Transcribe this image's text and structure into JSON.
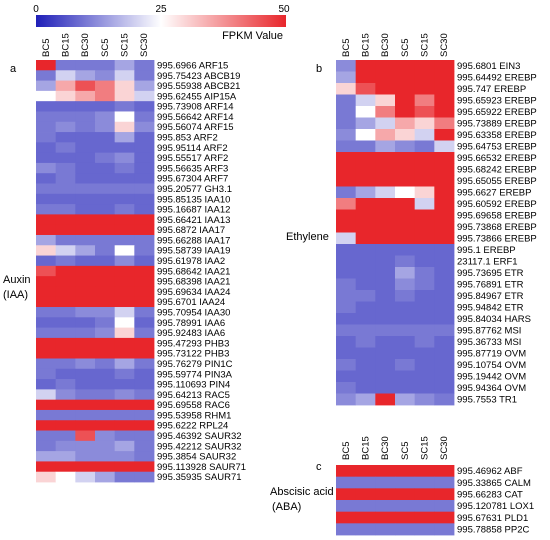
{
  "chart_data": {
    "type": "heatmap",
    "colorbar": {
      "label": "FPKM Value",
      "ticks": [
        0,
        25,
        50
      ],
      "range": [
        0,
        50
      ],
      "colors": {
        "low": "#1f1fb8",
        "mid": "#ffffff",
        "high": "#e8262b"
      }
    },
    "columns": [
      "BC5",
      "BC15",
      "BC30",
      "SC5",
      "SC15",
      "SC30"
    ],
    "panels": [
      {
        "letter": "a",
        "group_label": [
          "Auxin",
          "(IAA)"
        ],
        "rows": [
          {
            "label": "995.6966 ARF15",
            "values": [
              50,
              10,
              10,
              10,
              15,
              10
            ]
          },
          {
            "label": "995.75423 ABCB19",
            "values": [
              10,
              20,
              15,
              12,
              20,
              10
            ]
          },
          {
            "label": "995.55938 ABCB21",
            "values": [
              15,
              35,
              45,
              40,
              30,
              15
            ]
          },
          {
            "label": "995.62455 AIP15A",
            "values": [
              25,
              30,
              35,
              40,
              30,
              20
            ]
          },
          {
            "label": "995.73908 ARF14",
            "values": [
              8,
              8,
              8,
              8,
              10,
              8
            ]
          },
          {
            "label": "995.56642 ARF14",
            "values": [
              10,
              10,
              10,
              12,
              25,
              10
            ]
          },
          {
            "label": "995.56074 ARF15",
            "values": [
              10,
              12,
              10,
              12,
              30,
              12
            ]
          },
          {
            "label": "995.853 ARF2",
            "values": [
              10,
              8,
              8,
              8,
              15,
              8
            ]
          },
          {
            "label": "995.95114 ARF2",
            "values": [
              8,
              10,
              8,
              8,
              8,
              8
            ]
          },
          {
            "label": "995.55517 ARF2",
            "values": [
              8,
              8,
              8,
              10,
              12,
              8
            ]
          },
          {
            "label": "995.56635 ARF3",
            "values": [
              12,
              10,
              8,
              8,
              10,
              8
            ]
          },
          {
            "label": "995.67304 ARF7",
            "values": [
              8,
              10,
              8,
              8,
              8,
              8
            ]
          },
          {
            "label": "995.20577 GH3.1",
            "values": [
              10,
              10,
              10,
              10,
              10,
              10
            ]
          },
          {
            "label": "995.85135 IAA10",
            "values": [
              8,
              8,
              8,
              8,
              8,
              8
            ]
          },
          {
            "label": "995.16687 IAA12",
            "values": [
              10,
              10,
              8,
              8,
              10,
              8
            ]
          },
          {
            "label": "995.66421 IAA13",
            "values": [
              50,
              50,
              50,
              50,
              50,
              50
            ]
          },
          {
            "label": "995.6872 IAA17",
            "values": [
              50,
              50,
              50,
              50,
              50,
              50
            ]
          },
          {
            "label": "995.66288 IAA17",
            "values": [
              15,
              10,
              10,
              10,
              10,
              10
            ]
          },
          {
            "label": "995.58739 IAA19",
            "values": [
              30,
              20,
              15,
              10,
              25,
              10
            ]
          },
          {
            "label": "995.61978 IAA2",
            "values": [
              8,
              10,
              8,
              8,
              12,
              8
            ]
          },
          {
            "label": "995.68642 IAA21",
            "values": [
              45,
              50,
              50,
              50,
              50,
              50
            ]
          },
          {
            "label": "995.68398 IAA21",
            "values": [
              50,
              50,
              50,
              50,
              50,
              50
            ]
          },
          {
            "label": "995.69634 IAA24",
            "values": [
              50,
              50,
              50,
              50,
              50,
              50
            ]
          },
          {
            "label": "995.6701 IAA24",
            "values": [
              50,
              50,
              50,
              50,
              50,
              50
            ]
          },
          {
            "label": "995.70954 IAA30",
            "values": [
              10,
              10,
              12,
              12,
              20,
              10
            ]
          },
          {
            "label": "995.78991 IAA6",
            "values": [
              8,
              8,
              8,
              10,
              25,
              8
            ]
          },
          {
            "label": "995.92483 IAA6",
            "values": [
              10,
              10,
              10,
              12,
              30,
              10
            ]
          },
          {
            "label": "995.47293 PHB3",
            "values": [
              50,
              50,
              50,
              50,
              50,
              50
            ]
          },
          {
            "label": "995.73122 PHB3",
            "values": [
              50,
              50,
              50,
              50,
              50,
              50
            ]
          },
          {
            "label": "995.76279 PIN1C",
            "values": [
              10,
              10,
              12,
              10,
              15,
              10
            ]
          },
          {
            "label": "995.59774 PIN3A",
            "values": [
              10,
              8,
              8,
              8,
              10,
              8
            ]
          },
          {
            "label": "995.110693 PIN4",
            "values": [
              8,
              10,
              8,
              8,
              8,
              8
            ]
          },
          {
            "label": "995.64213 RAC5",
            "values": [
              20,
              12,
              10,
              10,
              12,
              10
            ]
          },
          {
            "label": "995.69558 RAC6",
            "values": [
              50,
              50,
              50,
              50,
              50,
              50
            ]
          },
          {
            "label": "995.53958 RHM1",
            "values": [
              10,
              10,
              10,
              10,
              10,
              10
            ]
          },
          {
            "label": "995.6222 RPL24",
            "values": [
              50,
              50,
              50,
              50,
              50,
              50
            ]
          },
          {
            "label": "995.46392 SAUR32",
            "values": [
              10,
              10,
              45,
              12,
              10,
              10
            ]
          },
          {
            "label": "995.42212 SAUR32",
            "values": [
              10,
              12,
              12,
              12,
              15,
              10
            ]
          },
          {
            "label": "995.3854 SAUR32",
            "values": [
              15,
              15,
              12,
              12,
              12,
              10
            ]
          },
          {
            "label": "995.113928 SAUR71",
            "values": [
              50,
              50,
              50,
              50,
              50,
              50
            ]
          },
          {
            "label": "995.35935 SAUR71",
            "values": [
              30,
              25,
              20,
              15,
              10,
              10
            ]
          }
        ]
      },
      {
        "letter": "b",
        "group_label": [
          "Ethylene"
        ],
        "rows": [
          {
            "label": "995.6801 EIN3",
            "values": [
              12,
              50,
              50,
              50,
              50,
              50
            ]
          },
          {
            "label": "995.64492 EREBP",
            "values": [
              15,
              50,
              50,
              50,
              50,
              50
            ]
          },
          {
            "label": "995.747 EREBP",
            "values": [
              30,
              45,
              50,
              50,
              50,
              50
            ]
          },
          {
            "label": "995.65923 EREBP",
            "values": [
              10,
              20,
              30,
              50,
              40,
              50
            ]
          },
          {
            "label": "995.65922 EREBP",
            "values": [
              10,
              25,
              40,
              50,
              45,
              50
            ]
          },
          {
            "label": "995.73889 EREBP",
            "values": [
              10,
              15,
              20,
              35,
              30,
              40
            ]
          },
          {
            "label": "995.63358 EREBP",
            "values": [
              12,
              25,
              35,
              30,
              20,
              50
            ]
          },
          {
            "label": "995.64753 EREBP",
            "values": [
              10,
              10,
              15,
              12,
              10,
              20
            ]
          },
          {
            "label": "995.66532 EREBP",
            "values": [
              50,
              50,
              50,
              50,
              50,
              50
            ]
          },
          {
            "label": "995.68242 EREBP",
            "values": [
              50,
              50,
              50,
              50,
              50,
              50
            ]
          },
          {
            "label": "995.65055 EREBP",
            "values": [
              50,
              50,
              50,
              50,
              50,
              50
            ]
          },
          {
            "label": "995.6627 EREBP",
            "values": [
              10,
              15,
              20,
              25,
              30,
              50
            ]
          },
          {
            "label": "995.60592 EREBP",
            "values": [
              40,
              50,
              50,
              50,
              20,
              50
            ]
          },
          {
            "label": "995.69658 EREBP",
            "values": [
              50,
              50,
              50,
              50,
              50,
              50
            ]
          },
          {
            "label": "995.73868 EREBP",
            "values": [
              50,
              50,
              50,
              50,
              50,
              50
            ]
          },
          {
            "label": "995.73866 EREBP",
            "values": [
              20,
              50,
              50,
              50,
              50,
              50
            ]
          },
          {
            "label": "995.1 EREBP",
            "values": [
              8,
              8,
              8,
              8,
              8,
              8
            ]
          },
          {
            "label": "23117.1 ERF1",
            "values": [
              8,
              8,
              8,
              10,
              8,
              8
            ]
          },
          {
            "label": "995.73695 ETR",
            "values": [
              8,
              8,
              8,
              15,
              10,
              8
            ]
          },
          {
            "label": "995.76891 ETR",
            "values": [
              10,
              8,
              8,
              12,
              10,
              8
            ]
          },
          {
            "label": "995.84967 ETR",
            "values": [
              10,
              10,
              8,
              10,
              8,
              8
            ]
          },
          {
            "label": "995.94842 ETR",
            "values": [
              10,
              8,
              8,
              8,
              8,
              8
            ]
          },
          {
            "label": "995.84034 HARS",
            "values": [
              8,
              8,
              8,
              8,
              8,
              8
            ]
          },
          {
            "label": "995.87762 MSI",
            "values": [
              10,
              10,
              10,
              10,
              10,
              10
            ]
          },
          {
            "label": "995.36733 MSI",
            "values": [
              8,
              10,
              8,
              8,
              10,
              8
            ]
          },
          {
            "label": "995.87719 OVM",
            "values": [
              8,
              8,
              8,
              8,
              8,
              8
            ]
          },
          {
            "label": "995.10754 OVM",
            "values": [
              10,
              8,
              8,
              10,
              8,
              8
            ]
          },
          {
            "label": "995.19442 OVM",
            "values": [
              8,
              8,
              8,
              8,
              8,
              8
            ]
          },
          {
            "label": "995.94364 OVM",
            "values": [
              10,
              8,
              8,
              8,
              8,
              8
            ]
          },
          {
            "label": "995.7553 TR1",
            "values": [
              12,
              15,
              50,
              15,
              12,
              10
            ]
          }
        ]
      },
      {
        "letter": "c",
        "group_label": [
          "Abscisic acid",
          "(ABA)"
        ],
        "rows": [
          {
            "label": "995.46962 ABF",
            "values": [
              50,
              50,
              50,
              50,
              50,
              50
            ]
          },
          {
            "label": "995.33865 CALM",
            "values": [
              10,
              10,
              10,
              10,
              10,
              10
            ]
          },
          {
            "label": "995.66283 CAT",
            "values": [
              50,
              50,
              50,
              50,
              50,
              50
            ]
          },
          {
            "label": "995.120781 LOX1",
            "values": [
              10,
              10,
              10,
              10,
              10,
              10
            ]
          },
          {
            "label": "995.67631 PLD1",
            "values": [
              50,
              50,
              50,
              50,
              50,
              50
            ]
          },
          {
            "label": "995.78858 PP2C",
            "values": [
              10,
              10,
              10,
              10,
              10,
              10
            ]
          }
        ]
      }
    ]
  }
}
